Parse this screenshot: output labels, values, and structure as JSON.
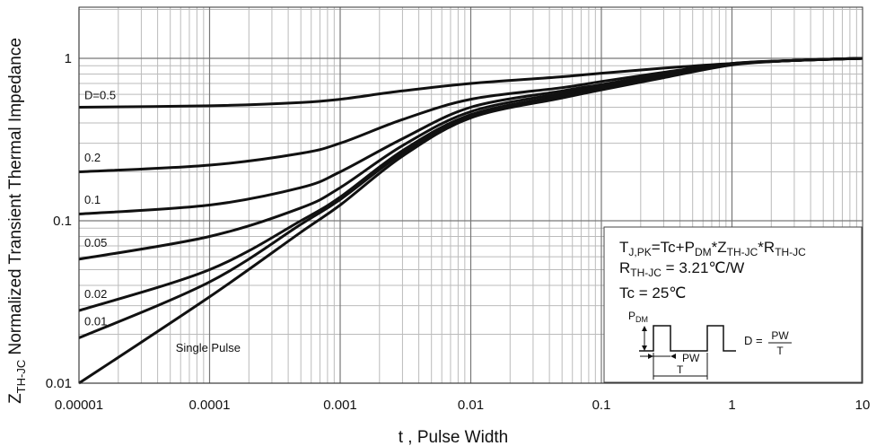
{
  "chart_data": {
    "type": "line",
    "title": "",
    "xlabel": "t , Pulse Width",
    "ylabel": "Z",
    "ylabel_sub": "TH-JC",
    "ylabel_rest": " Normalized Transient Thermal Impedance",
    "x_scale": "log",
    "y_scale": "log",
    "xlim": [
      1e-05,
      10
    ],
    "ylim": [
      0.01,
      2
    ],
    "grid": true,
    "x_ticks": [
      {
        "value": 1e-05,
        "label": "0.00001"
      },
      {
        "value": 0.0001,
        "label": "0.0001"
      },
      {
        "value": 0.001,
        "label": "0.001"
      },
      {
        "value": 0.01,
        "label": "0.01"
      },
      {
        "value": 0.1,
        "label": "0.1"
      },
      {
        "value": 1,
        "label": "1"
      },
      {
        "value": 10,
        "label": "10"
      }
    ],
    "y_ticks": [
      {
        "value": 0.01,
        "label": "0.01"
      },
      {
        "value": 0.1,
        "label": "0.1"
      },
      {
        "value": 1,
        "label": "1"
      }
    ],
    "series": [
      {
        "name": "D=0.5",
        "label_at": [
          1e-05,
          0.52
        ],
        "x": [
          1e-05,
          0.0001,
          0.0005,
          0.001,
          0.003,
          0.01,
          0.05,
          0.1,
          0.3,
          1,
          3,
          10
        ],
        "y": [
          0.5,
          0.51,
          0.535,
          0.56,
          0.63,
          0.7,
          0.77,
          0.81,
          0.87,
          0.93,
          0.97,
          1.0
        ]
      },
      {
        "name": "0.2",
        "label_at": [
          1e-05,
          0.215
        ],
        "x": [
          1e-05,
          0.0001,
          0.0005,
          0.001,
          0.003,
          0.01,
          0.05,
          0.1,
          0.3,
          1,
          3,
          10
        ],
        "y": [
          0.2,
          0.22,
          0.26,
          0.3,
          0.42,
          0.56,
          0.66,
          0.72,
          0.82,
          0.93,
          0.97,
          1.0
        ]
      },
      {
        "name": "0.1",
        "label_at": [
          1e-05,
          0.118
        ],
        "x": [
          1e-05,
          0.0001,
          0.0005,
          0.001,
          0.003,
          0.01,
          0.05,
          0.1,
          0.3,
          1,
          3,
          10
        ],
        "y": [
          0.11,
          0.125,
          0.16,
          0.2,
          0.32,
          0.5,
          0.63,
          0.69,
          0.8,
          0.93,
          0.97,
          1.0
        ]
      },
      {
        "name": "0.05",
        "label_at": [
          1e-05,
          0.064
        ],
        "x": [
          1e-05,
          0.0001,
          0.0005,
          0.001,
          0.003,
          0.01,
          0.05,
          0.1,
          0.3,
          1,
          3,
          10
        ],
        "y": [
          0.058,
          0.08,
          0.12,
          0.16,
          0.29,
          0.47,
          0.61,
          0.67,
          0.78,
          0.92,
          0.97,
          1.0
        ]
      },
      {
        "name": "0.02",
        "label_at": [
          1e-05,
          0.031
        ],
        "x": [
          1e-05,
          0.0001,
          0.0005,
          0.001,
          0.003,
          0.01,
          0.05,
          0.1,
          0.3,
          1,
          3,
          10
        ],
        "y": [
          0.028,
          0.05,
          0.1,
          0.14,
          0.27,
          0.45,
          0.59,
          0.66,
          0.77,
          0.92,
          0.97,
          1.0
        ]
      },
      {
        "name": "0.01",
        "label_at": [
          1e-05,
          0.021
        ],
        "x": [
          1e-05,
          0.0001,
          0.0005,
          0.001,
          0.003,
          0.01,
          0.05,
          0.1,
          0.3,
          1,
          3,
          10
        ],
        "y": [
          0.019,
          0.042,
          0.095,
          0.135,
          0.26,
          0.44,
          0.58,
          0.65,
          0.77,
          0.92,
          0.97,
          1.0
        ]
      },
      {
        "name": "Single Pulse",
        "label_at": [
          5e-05,
          0.0145
        ],
        "x": [
          1e-05,
          0.0001,
          0.0005,
          0.001,
          0.003,
          0.01,
          0.05,
          0.1,
          0.3,
          1,
          3,
          10
        ],
        "y": [
          0.01,
          0.034,
          0.085,
          0.125,
          0.25,
          0.43,
          0.57,
          0.64,
          0.76,
          0.91,
          0.97,
          1.0
        ]
      }
    ]
  },
  "info_box": {
    "eq1_T": "T",
    "eq1_Tsub": "J,PK",
    "eq1_mid": "=Tc+P",
    "eq1_Psub": "DM",
    "eq1_star1": "*Z",
    "eq1_Zsub": "TH-JC",
    "eq1_star2": "*R",
    "eq1_Rsub": "TH-JC",
    "eq2_R": "R",
    "eq2_Rsub": "TH-JC",
    "eq2_val": " = 3.21℃/W",
    "eq3": "Tc = 25℃",
    "pdm_P": "P",
    "pdm_sub": "DM",
    "pw_label": "PW",
    "t_label": "T",
    "d_label": "D =",
    "d_num": "PW",
    "d_den": "T"
  }
}
